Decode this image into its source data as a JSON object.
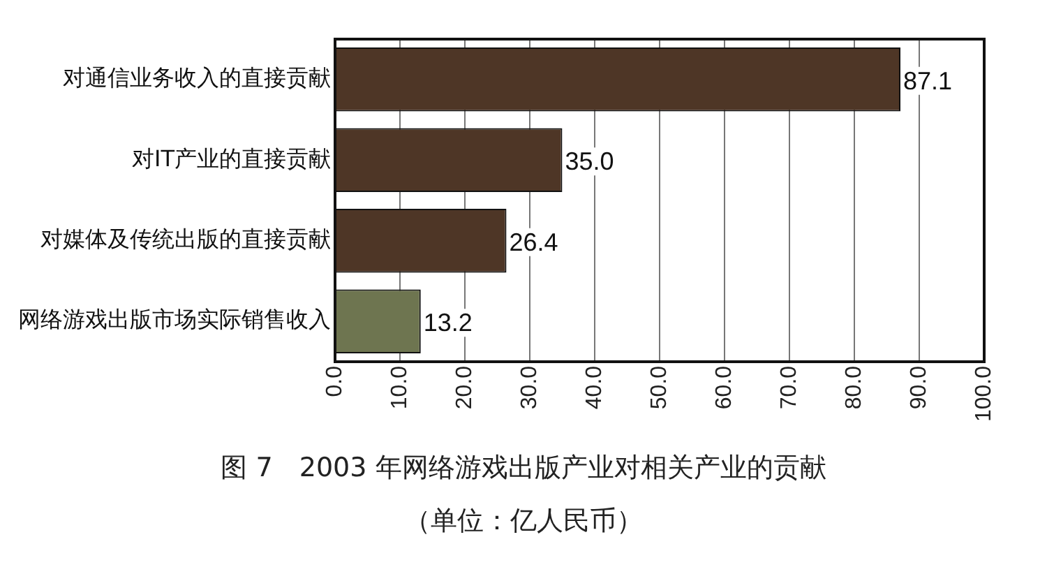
{
  "chart_data": {
    "type": "bar",
    "orientation": "horizontal",
    "title": "图 7　2003 年网络游戏出版产业对相关产业的贡献",
    "subtitle": "（单位：亿人民币）",
    "categories": [
      "对通信业务收入的直接贡献",
      "对IT产业的直接贡献",
      "对媒体及传统出版的直接贡献",
      "网络游戏出版市场实际销售收入"
    ],
    "values": [
      87.1,
      35.0,
      26.4,
      13.2
    ],
    "colors": [
      "#4e3626",
      "#4e3626",
      "#4e3626",
      "#6e7550"
    ],
    "xlim": [
      0,
      100
    ],
    "xticks": [
      {
        "value": 0,
        "label": "0.0"
      },
      {
        "value": 10,
        "label": "10.0"
      },
      {
        "value": 20,
        "label": "20.0"
      },
      {
        "value": 30,
        "label": "30.0"
      },
      {
        "value": 40,
        "label": "40.0"
      },
      {
        "value": 50,
        "label": "50.0"
      },
      {
        "value": 60,
        "label": "60.0"
      },
      {
        "value": 70,
        "label": "70.0"
      },
      {
        "value": 80,
        "label": "80.0"
      },
      {
        "value": 90,
        "label": "90.0"
      },
      {
        "value": 100,
        "label": "100.0"
      }
    ],
    "value_labels": [
      "87.1",
      "35.0",
      "26.4",
      "13.2"
    ],
    "grid": "x",
    "legend": false
  }
}
